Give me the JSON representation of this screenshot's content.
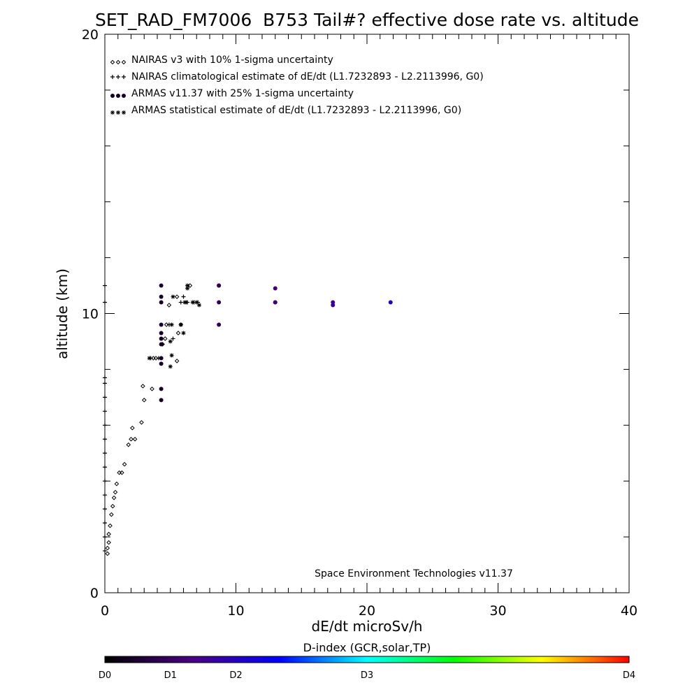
{
  "chart_data": {
    "type": "scatter",
    "title": "SET_RAD_FM7006  B753 Tail#? effective dose rate vs. altitude",
    "xlabel": "dE/dt microSv/h",
    "ylabel": "altitude (km)",
    "xlim": [
      0,
      40
    ],
    "ylim": [
      0,
      20
    ],
    "x_ticks": [
      "0",
      "10",
      "20",
      "30",
      "40"
    ],
    "y_ticks": [
      "0",
      "10",
      "20"
    ],
    "grid": false,
    "legend_position": "top-left",
    "annotation": "Space Environment Technologies v11.37",
    "colorbar": {
      "title": "D-index (GCR,solar,TP)",
      "labels": [
        "D0",
        "D1",
        "D2",
        "D3",
        "D4"
      ],
      "label_positions": [
        0,
        0.125,
        0.25,
        0.5,
        1.0
      ],
      "stops": [
        "#000000",
        "#4b0082",
        "#0000ff",
        "#00ffff",
        "#00ff00",
        "#ffff00",
        "#ff0000"
      ]
    },
    "series": [
      {
        "name": "NAIRAS v3 with 10% 1-sigma uncertainty",
        "marker": "diamond",
        "color": "#000000",
        "x": [
          0.2,
          0.2,
          0.3,
          0.3,
          0.4,
          0.5,
          0.6,
          0.7,
          0.8,
          0.9,
          1.1,
          1.3,
          1.5,
          1.8,
          2.0,
          2.1,
          2.3,
          2.8,
          3.0,
          2.9,
          3.6,
          3.7,
          3.9,
          4.4,
          4.6,
          4.7,
          4.9,
          5.5,
          5.6,
          5.5,
          5.8,
          6.5
        ],
        "y": [
          1.4,
          1.6,
          1.8,
          2.1,
          2.4,
          2.8,
          3.1,
          3.4,
          3.6,
          3.9,
          4.3,
          4.3,
          4.6,
          5.3,
          5.5,
          5.9,
          5.5,
          6.1,
          6.9,
          7.4,
          7.3,
          8.4,
          8.4,
          8.9,
          9.1,
          9.6,
          10.3,
          10.6,
          9.3,
          8.3,
          9.6,
          11.0
        ]
      },
      {
        "name": "NAIRAS climatological estimate of dE/dt (L1.7232893 - L2.2113996, G0)",
        "marker": "plus",
        "color": "#000000",
        "x": [
          0,
          0,
          0,
          0,
          0,
          0,
          0,
          0,
          0,
          0,
          0,
          0,
          0,
          0,
          0,
          0,
          3.5,
          4.1,
          4.4,
          4.9,
          5.2,
          5.8,
          6.0,
          6.3,
          6.8,
          7.1
        ],
        "y": [
          1.5,
          2.0,
          2.5,
          3.0,
          3.5,
          4.0,
          4.5,
          5.0,
          5.5,
          6.0,
          6.5,
          7.0,
          7.5,
          7.7,
          11.0,
          10.4,
          8.4,
          8.4,
          8.9,
          9.6,
          9.1,
          10.4,
          10.6,
          10.4,
          10.4,
          10.4
        ]
      },
      {
        "name": "ARMAS v11.37 with 25% 1-sigma uncertainty",
        "marker": "dot",
        "color": "#0000ff",
        "x": [
          4.3,
          4.3,
          4.3,
          4.3,
          4.3,
          4.3,
          4.3,
          4.3,
          4.3,
          4.3,
          4.3,
          8.7,
          8.7,
          8.7,
          8.7,
          13.0,
          13.0,
          13.0,
          17.4,
          17.4,
          21.8
        ],
        "y": [
          11.0,
          10.6,
          10.4,
          9.6,
          9.3,
          8.9,
          8.4,
          8.2,
          7.3,
          6.9,
          9.1,
          11.0,
          10.4,
          9.6,
          11.0,
          10.9,
          10.4,
          10.4,
          10.3,
          10.4,
          10.4
        ],
        "dindex": [
          0.2,
          0.2,
          0.2,
          0.2,
          0.2,
          0.2,
          0.2,
          0.2,
          0.2,
          0.2,
          0.2,
          0.4,
          0.4,
          0.4,
          0.4,
          0.6,
          0.6,
          0.6,
          0.8,
          0.8,
          1.0
        ]
      },
      {
        "name": "ARMAS statistical estimate of dE/dt (L1.7232893 - L2.2113996, G0)",
        "marker": "asterisk",
        "color": "#000000",
        "x": [
          3.4,
          5.0,
          5.1,
          5.0,
          5.1,
          5.2,
          5.8,
          6.0,
          6.3,
          6.3,
          6.7,
          7.0,
          7.2,
          6.1,
          6.2
        ],
        "y": [
          8.4,
          8.1,
          8.5,
          9.0,
          9.6,
          10.6,
          9.6,
          9.3,
          11.0,
          10.9,
          10.4,
          10.4,
          10.3,
          10.4,
          10.4
        ]
      }
    ]
  }
}
